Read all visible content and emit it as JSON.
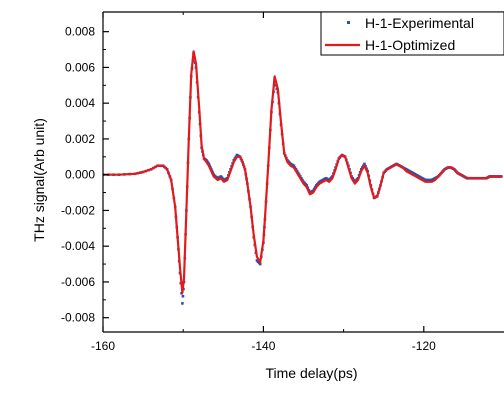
{
  "chart_data": {
    "type": "line",
    "xlabel": "Time delay(ps)",
    "ylabel": "THz signal(Arb unit)",
    "xlim": [
      -160,
      -110
    ],
    "ylim": [
      -0.0088,
      0.0091
    ],
    "x_ticks": [
      -160,
      -140,
      -120
    ],
    "x_tick_labels": [
      "-160",
      "-140",
      "-120"
    ],
    "y_ticks": [
      -0.008,
      -0.006,
      -0.004,
      -0.002,
      0.0,
      0.002,
      0.004,
      0.006,
      0.008
    ],
    "y_tick_labels": [
      "-0.008",
      "-0.006",
      "-0.004",
      "-0.002",
      "0.000",
      "0.002",
      "0.004",
      "0.006",
      "0.008"
    ],
    "legend_position": "top-right",
    "grid": false,
    "series": [
      {
        "name": "H-1-Experimental",
        "style": "scatter",
        "color": "#2f4fa8",
        "x": [
          -160,
          -158,
          -156,
          -155,
          -154,
          -153.2,
          -152.5,
          -152,
          -151.5,
          -151,
          -150.7,
          -150.4,
          -150.1,
          -149.9,
          -149.6,
          -149.3,
          -149,
          -148.7,
          -148.4,
          -148,
          -147.7,
          -147.4,
          -147.1,
          -146.8,
          -146.5,
          -146.2,
          -145.7,
          -145.3,
          -144.9,
          -144.5,
          -144.1,
          -143.7,
          -143.3,
          -142.9,
          -142.6,
          -142.3,
          -142,
          -141.6,
          -141.2,
          -140.8,
          -140.4,
          -140,
          -139.8,
          -139.4,
          -139,
          -138.6,
          -138.2,
          -137.8,
          -137.4,
          -137,
          -136.6,
          -136.2,
          -135.8,
          -135.4,
          -135,
          -134.6,
          -134.2,
          -133.8,
          -133.4,
          -133,
          -132.6,
          -132.2,
          -131.8,
          -131.4,
          -131,
          -130.6,
          -130.2,
          -129.8,
          -129.4,
          -129,
          -128.6,
          -128.2,
          -127.8,
          -127.4,
          -127,
          -126.6,
          -126.2,
          -125.8,
          -125.4,
          -125,
          -124.6,
          -124.2,
          -123.8,
          -123.4,
          -123,
          -122.6,
          -122.2,
          -121.8,
          -121.4,
          -121,
          -120.6,
          -120.2,
          -119.8,
          -119.4,
          -119,
          -118.6,
          -118.2,
          -117.8,
          -117.4,
          -117,
          -116.6,
          -116.2,
          -115.8,
          -115.4,
          -115,
          -114.6,
          -114.2,
          -113.8,
          -113.4,
          -113,
          -112.6,
          -112.2,
          -111.8,
          -111.4,
          -111,
          -110.6,
          -110.2
        ],
        "y": [
          0.0,
          0.0,
          5e-05,
          0.00015,
          0.0003,
          0.0005,
          0.0005,
          0.0003,
          -0.0003,
          -0.0018,
          -0.0035,
          -0.0055,
          -0.0072,
          -0.006,
          -0.002,
          0.002,
          0.0055,
          0.0068,
          0.006,
          0.0035,
          0.0015,
          0.0009,
          0.0008,
          0.0006,
          0.0003,
          0.0,
          -0.0002,
          -0.0001,
          -0.0003,
          -0.0002,
          0.0003,
          0.0008,
          0.0011,
          0.001,
          0.0007,
          0.0003,
          -0.0005,
          -0.0018,
          -0.0035,
          -0.0048,
          -0.005,
          -0.0038,
          -0.0025,
          0.0005,
          0.0035,
          0.0052,
          0.0046,
          0.0028,
          0.0012,
          0.0008,
          0.0006,
          0.0005,
          0.0002,
          -0.0001,
          -0.0004,
          -0.0006,
          -0.001,
          -0.0009,
          -0.0006,
          -0.0004,
          -0.0003,
          -0.0002,
          -0.0003,
          -0.0001,
          0.0004,
          0.0009,
          0.0011,
          0.001,
          0.0005,
          -0.0001,
          -0.0004,
          -0.0002,
          0.0003,
          0.0006,
          0.0002,
          -0.0006,
          -0.0013,
          -0.0012,
          -0.0006,
          0.0001,
          0.0003,
          0.0004,
          0.0005,
          0.0006,
          0.0005,
          0.0004,
          0.0003,
          0.0002,
          0.0001,
          0.0,
          -0.0001,
          -0.0002,
          -0.0003,
          -0.0003,
          -0.0003,
          -0.0002,
          -0.0001,
          0.0001,
          0.0003,
          0.0004,
          0.0004,
          0.0003,
          0.0001,
          0.0,
          -0.0001,
          -0.0002,
          -0.0002,
          -0.0002,
          -0.0002,
          -0.0002,
          -0.0002,
          -0.0002,
          -0.0001,
          -0.0001,
          -0.0001,
          -0.0001,
          -0.0001
        ]
      },
      {
        "name": "H-1-Optimized",
        "style": "line",
        "color": "#e31a1c",
        "x": [
          -160,
          -158,
          -156,
          -155,
          -154,
          -153.2,
          -152.5,
          -152,
          -151.5,
          -151,
          -150.7,
          -150.4,
          -150.1,
          -149.9,
          -149.6,
          -149.3,
          -149,
          -148.7,
          -148.4,
          -148,
          -147.7,
          -147.4,
          -147.1,
          -146.8,
          -146.5,
          -146.2,
          -145.7,
          -145.3,
          -144.9,
          -144.5,
          -144.1,
          -143.7,
          -143.3,
          -142.9,
          -142.6,
          -142.3,
          -142,
          -141.6,
          -141.2,
          -140.8,
          -140.4,
          -140,
          -139.8,
          -139.4,
          -139,
          -138.6,
          -138.2,
          -137.8,
          -137.4,
          -137,
          -136.6,
          -136.2,
          -135.8,
          -135.4,
          -135,
          -134.6,
          -134.2,
          -133.8,
          -133.4,
          -133,
          -132.6,
          -132.2,
          -131.8,
          -131.4,
          -131,
          -130.6,
          -130.2,
          -129.8,
          -129.4,
          -129,
          -128.6,
          -128.2,
          -127.8,
          -127.4,
          -127,
          -126.6,
          -126.2,
          -125.8,
          -125.4,
          -125,
          -124.6,
          -124.2,
          -123.8,
          -123.4,
          -123,
          -122.6,
          -122.2,
          -121.8,
          -121.4,
          -121,
          -120.6,
          -120.2,
          -119.8,
          -119.4,
          -119,
          -118.6,
          -118.2,
          -117.8,
          -117.4,
          -117,
          -116.6,
          -116.2,
          -115.8,
          -115.4,
          -115,
          -114.6,
          -114.2,
          -113.8,
          -113.4,
          -113,
          -112.6,
          -112.2,
          -111.8,
          -111.4,
          -111,
          -110.6,
          -110.2
        ],
        "y": [
          0.0,
          0.0,
          5e-05,
          0.00015,
          0.0003,
          0.0005,
          0.0005,
          0.0003,
          -0.0003,
          -0.0018,
          -0.0035,
          -0.0052,
          -0.0066,
          -0.0058,
          -0.002,
          0.002,
          0.0056,
          0.0069,
          0.0062,
          0.0037,
          0.0016,
          0.0009,
          0.0007,
          0.0005,
          0.0002,
          -0.0001,
          -0.0003,
          -0.0002,
          -0.0004,
          -0.0003,
          0.0002,
          0.0007,
          0.001,
          0.001,
          0.0007,
          0.0003,
          -0.0005,
          -0.0018,
          -0.0034,
          -0.0046,
          -0.0049,
          -0.0037,
          -0.0024,
          0.0005,
          0.0036,
          0.0055,
          0.0048,
          0.0029,
          0.0012,
          0.0007,
          0.0005,
          0.0004,
          0.0001,
          -0.0002,
          -0.0005,
          -0.0007,
          -0.0011,
          -0.001,
          -0.0007,
          -0.0005,
          -0.0004,
          -0.0003,
          -0.0004,
          -0.0002,
          0.0003,
          0.0009,
          0.0011,
          0.001,
          0.0004,
          -0.0002,
          -0.0005,
          -0.0003,
          0.0002,
          0.0005,
          0.0001,
          -0.0007,
          -0.0013,
          -0.0012,
          -0.0006,
          0.0001,
          0.0003,
          0.0004,
          0.0005,
          0.0006,
          0.0005,
          0.0004,
          0.0002,
          0.0001,
          0.0,
          -0.0001,
          -0.0002,
          -0.0003,
          -0.0004,
          -0.0004,
          -0.0004,
          -0.0003,
          -0.0001,
          0.0001,
          0.0003,
          0.0004,
          0.0004,
          0.0003,
          0.0001,
          0.0,
          -0.0001,
          -0.0002,
          -0.0002,
          -0.0002,
          -0.0002,
          -0.0002,
          -0.0002,
          -0.0002,
          -0.0001,
          -0.0001,
          -0.0001,
          -0.0001,
          -0.0001
        ]
      }
    ]
  }
}
